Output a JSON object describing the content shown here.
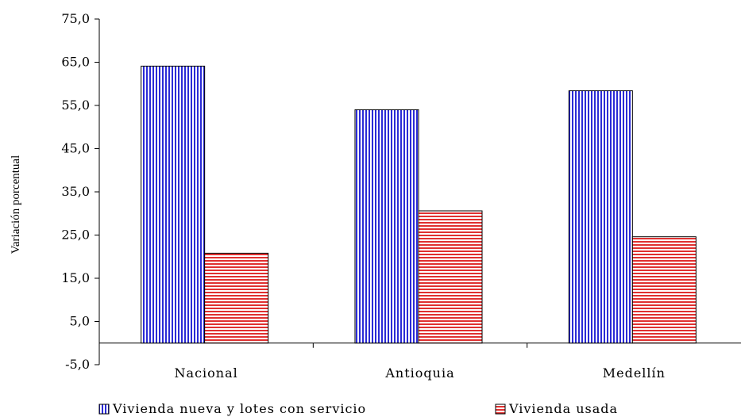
{
  "chart_data": {
    "type": "bar",
    "title": "",
    "xlabel": "",
    "ylabel": "Variación porcentual",
    "ylim": [
      -5,
      75
    ],
    "yticks": [
      -5,
      5,
      15,
      25,
      35,
      45,
      55,
      65,
      75
    ],
    "ytick_labels": [
      "-5,0",
      "5,0",
      "15,0",
      "25,0",
      "35,0",
      "45,0",
      "55,0",
      "65,0",
      "75,0"
    ],
    "categories": [
      "Nacional",
      "Antioquia",
      "Medellín"
    ],
    "series": [
      {
        "name": "Vivienda nueva y lotes con servicio",
        "values": [
          64.1,
          54.0,
          58.4
        ],
        "color": "#2b2bd6",
        "pattern": "vertical-stripes"
      },
      {
        "name": "Vivienda usada",
        "values": [
          20.8,
          30.6,
          24.6
        ],
        "color": "#e03030",
        "pattern": "horizontal-stripes"
      }
    ],
    "grid": false,
    "legend_position": "bottom"
  }
}
